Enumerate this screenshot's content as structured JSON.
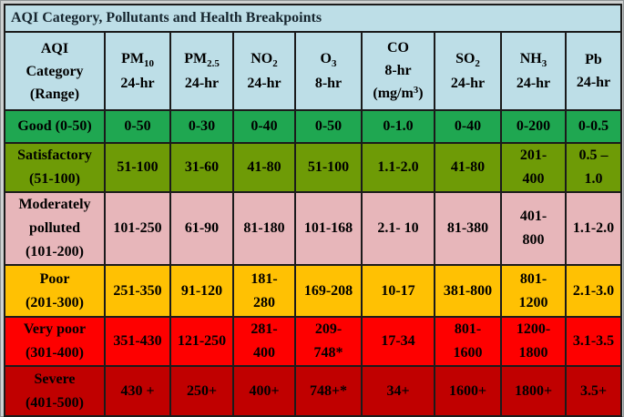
{
  "title": "AQI Category, Pollutants and Health Breakpoints",
  "colors": {
    "header_bg": "#BDDEE7",
    "good": "#1FA751",
    "satisfactory": "#6E9B06",
    "moderate": "#E7B6BA",
    "poor": "#FFC103",
    "very_poor": "#FE0000",
    "severe": "#C00000"
  },
  "header": {
    "category": "AQI\nCategory\n(Range)",
    "pollutants": [
      {
        "symbol": "PM",
        "sub": "10",
        "period": "24-hr"
      },
      {
        "symbol": "PM",
        "sub": "2.5",
        "period": "24-hr"
      },
      {
        "symbol": "NO",
        "sub": "2",
        "period": "24-hr"
      },
      {
        "symbol": "O",
        "sub": "3",
        "period": "8-hr"
      },
      {
        "symbol": "CO",
        "sub": "",
        "period": "8-hr",
        "unit_prefix": "(mg/m",
        "unit_sup": "3",
        "unit_suffix": ")"
      },
      {
        "symbol": "SO",
        "sub": "2",
        "period": "24-hr"
      },
      {
        "symbol": "NH",
        "sub": "3",
        "period": "24-hr"
      },
      {
        "symbol": "Pb",
        "sub": "",
        "period": "24-hr"
      }
    ]
  },
  "rows": [
    {
      "category": "Good (0-50)",
      "color_key": "good",
      "values": [
        "0-50",
        "0-30",
        "0-40",
        "0-50",
        "0-1.0",
        "0-40",
        "0-200",
        "0-0.5"
      ]
    },
    {
      "category": "Satisfactory\n(51-100)",
      "color_key": "satisfactory",
      "values": [
        "51-100",
        "31-60",
        "41-80",
        "51-100",
        "1.1-2.0",
        "41-80",
        "201-\n400",
        "0.5 –\n1.0"
      ]
    },
    {
      "category": "Moderately\npolluted\n(101-200)",
      "color_key": "moderate",
      "values": [
        "101-250",
        "61-90",
        "81-180",
        "101-168",
        "2.1- 10",
        "81-380",
        "401-\n800",
        "1.1-2.0"
      ]
    },
    {
      "category": "Poor\n(201-300)",
      "color_key": "poor",
      "values": [
        "251-350",
        "91-120",
        "181-\n280",
        "169-208",
        "10-17",
        "381-800",
        "801-\n1200",
        "2.1-3.0"
      ]
    },
    {
      "category": "Very poor\n(301-400)",
      "color_key": "very_poor",
      "values": [
        "351-430",
        "121-250",
        "281-\n400",
        "209-\n748*",
        "17-34",
        "801-\n1600",
        "1200-\n1800",
        "3.1-3.5"
      ]
    },
    {
      "category": "Severe\n(401-500)",
      "color_key": "severe",
      "values": [
        "430 +",
        "250+",
        "400+",
        "748+*",
        "34+",
        "1600+",
        "1800+",
        "3.5+"
      ]
    }
  ]
}
